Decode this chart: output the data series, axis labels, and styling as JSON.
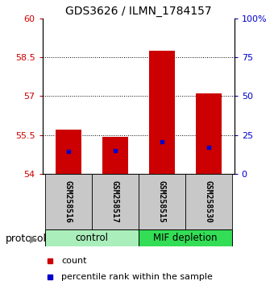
{
  "title": "GDS3626 / ILMN_1784157",
  "samples": [
    "GSM258516",
    "GSM258517",
    "GSM258515",
    "GSM258530"
  ],
  "bar_values": [
    55.72,
    55.43,
    58.75,
    57.1
  ],
  "percentile_values": [
    14.5,
    15.0,
    20.5,
    17.0
  ],
  "bar_base": 54.0,
  "ylim_left": [
    54.0,
    60.0
  ],
  "ylim_right": [
    0.0,
    100.0
  ],
  "yticks_left": [
    54,
    55.5,
    57,
    58.5,
    60
  ],
  "ytick_labels_left": [
    "54",
    "55.5",
    "57",
    "58.5",
    "60"
  ],
  "yticks_right": [
    0,
    25,
    50,
    75,
    100
  ],
  "ytick_labels_right": [
    "0",
    "25",
    "50",
    "75",
    "100%"
  ],
  "bar_color": "#cc0000",
  "percentile_color": "#0000cc",
  "bar_width": 0.55,
  "control_color": "#aaeebb",
  "mif_color": "#33dd55",
  "protocol_label": "protocol",
  "legend_count_label": "count",
  "legend_percentile_label": "percentile rank within the sample",
  "sample_box_color": "#c8c8c8",
  "title_fontsize": 10,
  "tick_fontsize": 8,
  "sample_fontsize": 7,
  "group_fontsize": 8.5,
  "legend_fontsize": 8,
  "protocol_fontsize": 9
}
